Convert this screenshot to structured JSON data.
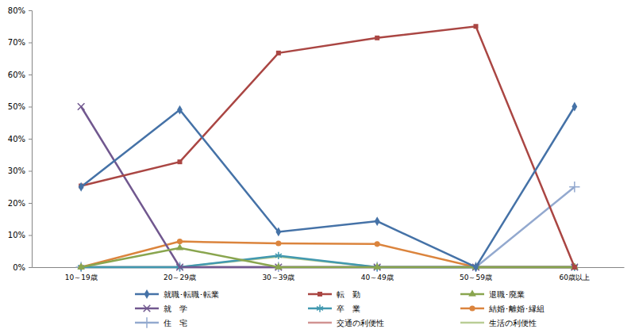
{
  "chart_data": {
    "type": "line",
    "categories": [
      "10～19歳",
      "20～29歳",
      "30～39歳",
      "40～49歳",
      "50～59歳",
      "60歳以上"
    ],
    "ylim": [
      0,
      80
    ],
    "yticks": [
      {
        "value": 0,
        "label": "0%"
      },
      {
        "value": 10,
        "label": "10%"
      },
      {
        "value": 20,
        "label": "20%"
      },
      {
        "value": 30,
        "label": "30%"
      },
      {
        "value": 40,
        "label": "40%"
      },
      {
        "value": 50,
        "label": "50%"
      },
      {
        "value": 60,
        "label": "60%"
      },
      {
        "value": 70,
        "label": "70%"
      },
      {
        "value": 80,
        "label": "80%"
      }
    ],
    "grid": false,
    "legend": "bottom",
    "series": [
      {
        "name": "就職･転職･転業",
        "color": "#4572a7",
        "marker": "diamond",
        "values": [
          25,
          49,
          11,
          14.3,
          0,
          50
        ]
      },
      {
        "name": "転　勤",
        "color": "#aa4643",
        "marker": "square",
        "values": [
          25.3,
          32.8,
          66.7,
          71.4,
          75,
          0
        ]
      },
      {
        "name": "退職･廃業",
        "color": "#89a54e",
        "marker": "triangle",
        "values": [
          0,
          6,
          0,
          0,
          0,
          0
        ]
      },
      {
        "name": "就　学",
        "color": "#71588f",
        "marker": "x",
        "values": [
          50,
          0,
          0,
          0,
          0,
          0
        ]
      },
      {
        "name": "卒　業",
        "color": "#4198af",
        "marker": "star",
        "values": [
          0,
          0,
          3.6,
          0,
          0,
          0
        ]
      },
      {
        "name": "結婚･離婚･縁組",
        "color": "#db843d",
        "marker": "circle",
        "values": [
          0,
          8,
          7.4,
          7.2,
          0,
          0
        ]
      },
      {
        "name": "住　宅",
        "color": "#93a9cf",
        "marker": "plus",
        "values": [
          0,
          0,
          0,
          0,
          0,
          25
        ]
      },
      {
        "name": "交通の利便性",
        "color": "#d19392",
        "marker": "none",
        "values": [
          0,
          0,
          0,
          0,
          0,
          0
        ]
      },
      {
        "name": "生活の利便性",
        "color": "#b9cd96",
        "marker": "none",
        "values": [
          0,
          0,
          3.3,
          0,
          0,
          0
        ]
      }
    ]
  }
}
